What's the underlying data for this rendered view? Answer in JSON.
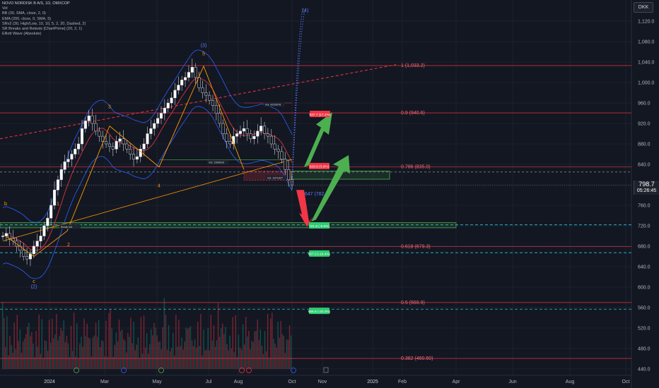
{
  "legend": {
    "title": "NOVO NORDISK B A/S, 1D, OMXCOP",
    "lines": [
      "Vol",
      "BB (30, SMA, close, 2, 0)",
      "EMA (200, close, 0, SMA, 5)",
      "SRv2 (30, High/Low, 10, 10, 5, 2, 20, Dashed, 2)",
      "SR Breaks and Retests [ChartPrime] (20, 2, 1)",
      "Elliott Wave (Absolute)"
    ]
  },
  "currency": "DKK",
  "last_price": {
    "value": "798.7",
    "countdown": "05:26:45"
  },
  "colors": {
    "bg": "#131722",
    "up": "#089981",
    "down": "#f23645",
    "grid": "#1e222d",
    "fib": "#f23645",
    "support": "#2ecc71",
    "bb": "#2962ff",
    "ema": "#ff9800",
    "wave": "#ff9800"
  },
  "fib_labels": [
    "1 (1,033.2)",
    "0.9 (940.6)",
    "0.786 (835.0)",
    "0.647 (782.2)",
    "0.618 (679.3)",
    "0.5 (569.9)",
    "0.382 (460.60)"
  ],
  "targets": [
    "937.7 (17.4%)",
    "829.8 (3.9%)",
    "721.8 (-9.6%)",
    "667.3 (-16.4%)",
    "556.9 (-30.3%)"
  ],
  "wave_labels": [
    "b",
    "1",
    "2",
    "3",
    "4",
    "(3)",
    "5",
    "c",
    "(2)",
    "(4)"
  ],
  "volume_labels": [
    "Vol. 2365910",
    "Vol. 1871627",
    "Vol. 4203078",
    "Break Vol"
  ],
  "chart_data": {
    "type": "candlestick",
    "title": "NOVO NORDISK B A/S, 1D, OMXCOP",
    "y_ticks": [
      1120,
      1080,
      1040,
      1000,
      960,
      920,
      880,
      840,
      800,
      760,
      720,
      680,
      640,
      600,
      560,
      520,
      480,
      440
    ],
    "y_tick_labels": [
      "1,120.0",
      "1,080.0",
      "1,040.0",
      "1,000.0",
      "960.0",
      "920.0",
      "880.0",
      "840.0",
      "800.0",
      "760.0",
      "720.0",
      "680.0",
      "640.0",
      "600.0",
      "560.0",
      "520.0",
      "480.0",
      "440.0"
    ],
    "ylim": [
      436,
      1145
    ],
    "x_ticks": [
      "2024",
      "Mar",
      "May",
      "Jul",
      "Aug",
      "Oct",
      "Nov",
      "2025",
      "Feb",
      "Apr",
      "Jun",
      "Aug",
      "Oct"
    ],
    "fib_levels": [
      {
        "label": "1 (1,033.2)",
        "value": 1033.2
      },
      {
        "label": "0.9 (940.6)",
        "value": 940.6
      },
      {
        "label": "0.786 (835.0)",
        "value": 835.0
      },
      {
        "label": "0.618 (679.3)",
        "value": 679.3
      },
      {
        "label": "0.5 (569.9)",
        "value": 569.9
      },
      {
        "label": "0.382 (460.60)",
        "value": 460.6
      }
    ],
    "support_levels": [
      721.8,
      667.3,
      556.9,
      829.8
    ],
    "last_close": 798.7,
    "closes_approx": [
      700,
      705,
      695,
      690,
      680,
      672,
      660,
      655,
      665,
      680,
      690,
      700,
      720,
      735,
      760,
      790,
      810,
      830,
      845,
      850,
      860,
      870,
      880,
      910,
      925,
      935,
      920,
      905,
      895,
      885,
      880,
      875,
      870,
      885,
      890,
      880,
      870,
      860,
      850,
      855,
      870,
      880,
      900,
      910,
      920,
      930,
      940,
      950,
      960,
      970,
      985,
      995,
      1005,
      1010,
      1020,
      1030,
      1010,
      990,
      980,
      975,
      965,
      955,
      940,
      920,
      900,
      885,
      880,
      895,
      900,
      905,
      910,
      900,
      890,
      895,
      905,
      915,
      900,
      895,
      880,
      870,
      865,
      850,
      830,
      810,
      798.7
    ]
  }
}
